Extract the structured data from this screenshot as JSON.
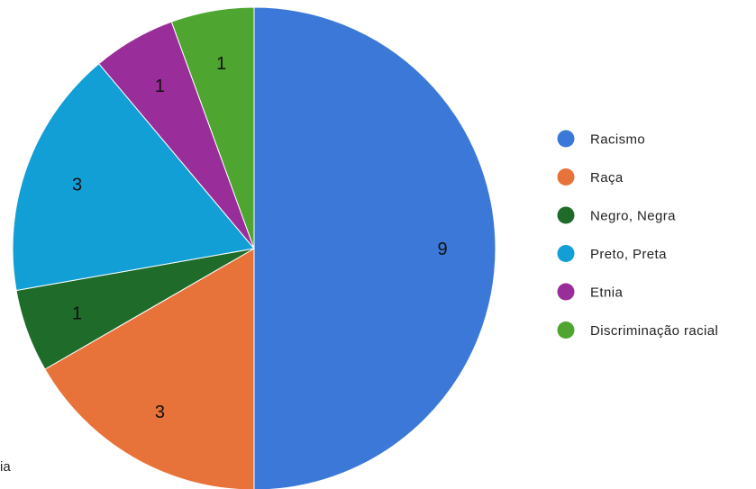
{
  "chart_data": {
    "type": "pie",
    "title": "",
    "series": [
      {
        "name": "Racismo",
        "value": 9,
        "label": "9",
        "color": "#3c78d8"
      },
      {
        "name": "Raça",
        "value": 3,
        "label": "3",
        "color": "#e8733a"
      },
      {
        "name": "Negro, Negra",
        "value": 1,
        "label": "1",
        "color": "#1e6b2a"
      },
      {
        "name": "Preto, Preta",
        "value": 3,
        "label": "3",
        "color": "#119fd6"
      },
      {
        "name": "Etnia",
        "value": 1,
        "label": "1",
        "color": "#992d99"
      },
      {
        "name": "Discriminação racial",
        "value": 1,
        "label": "1",
        "color": "#4ea631"
      }
    ],
    "legend_position": "right",
    "start_angle": "top, clockwise"
  },
  "stray_text": "ia"
}
